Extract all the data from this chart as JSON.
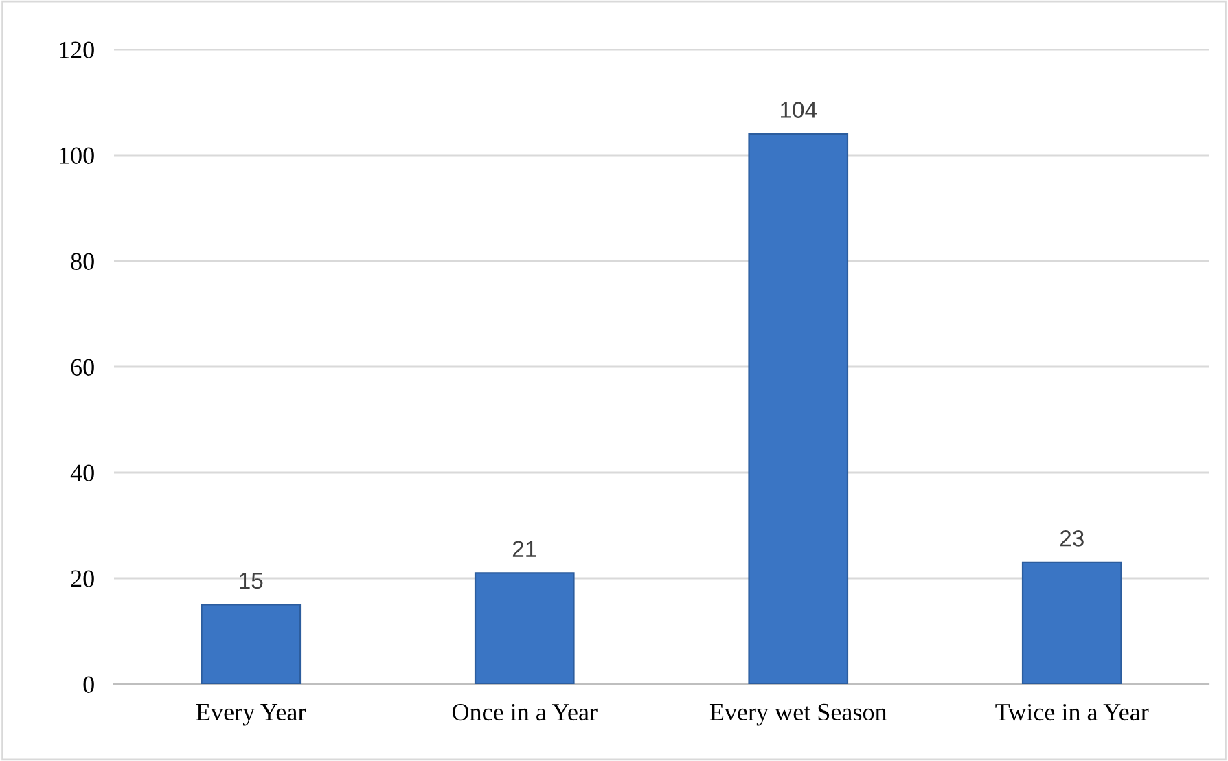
{
  "chart_data": {
    "type": "bar",
    "categories": [
      "Every Year",
      "Once in a Year",
      "Every wet Season",
      "Twice in a Year"
    ],
    "values": [
      15,
      21,
      104,
      23
    ],
    "color": "#3a75c4",
    "ylim": [
      0,
      120
    ],
    "yticks": [
      0,
      20,
      40,
      60,
      80,
      100,
      120
    ],
    "grid": "y",
    "data_labels": true,
    "legend": false
  }
}
